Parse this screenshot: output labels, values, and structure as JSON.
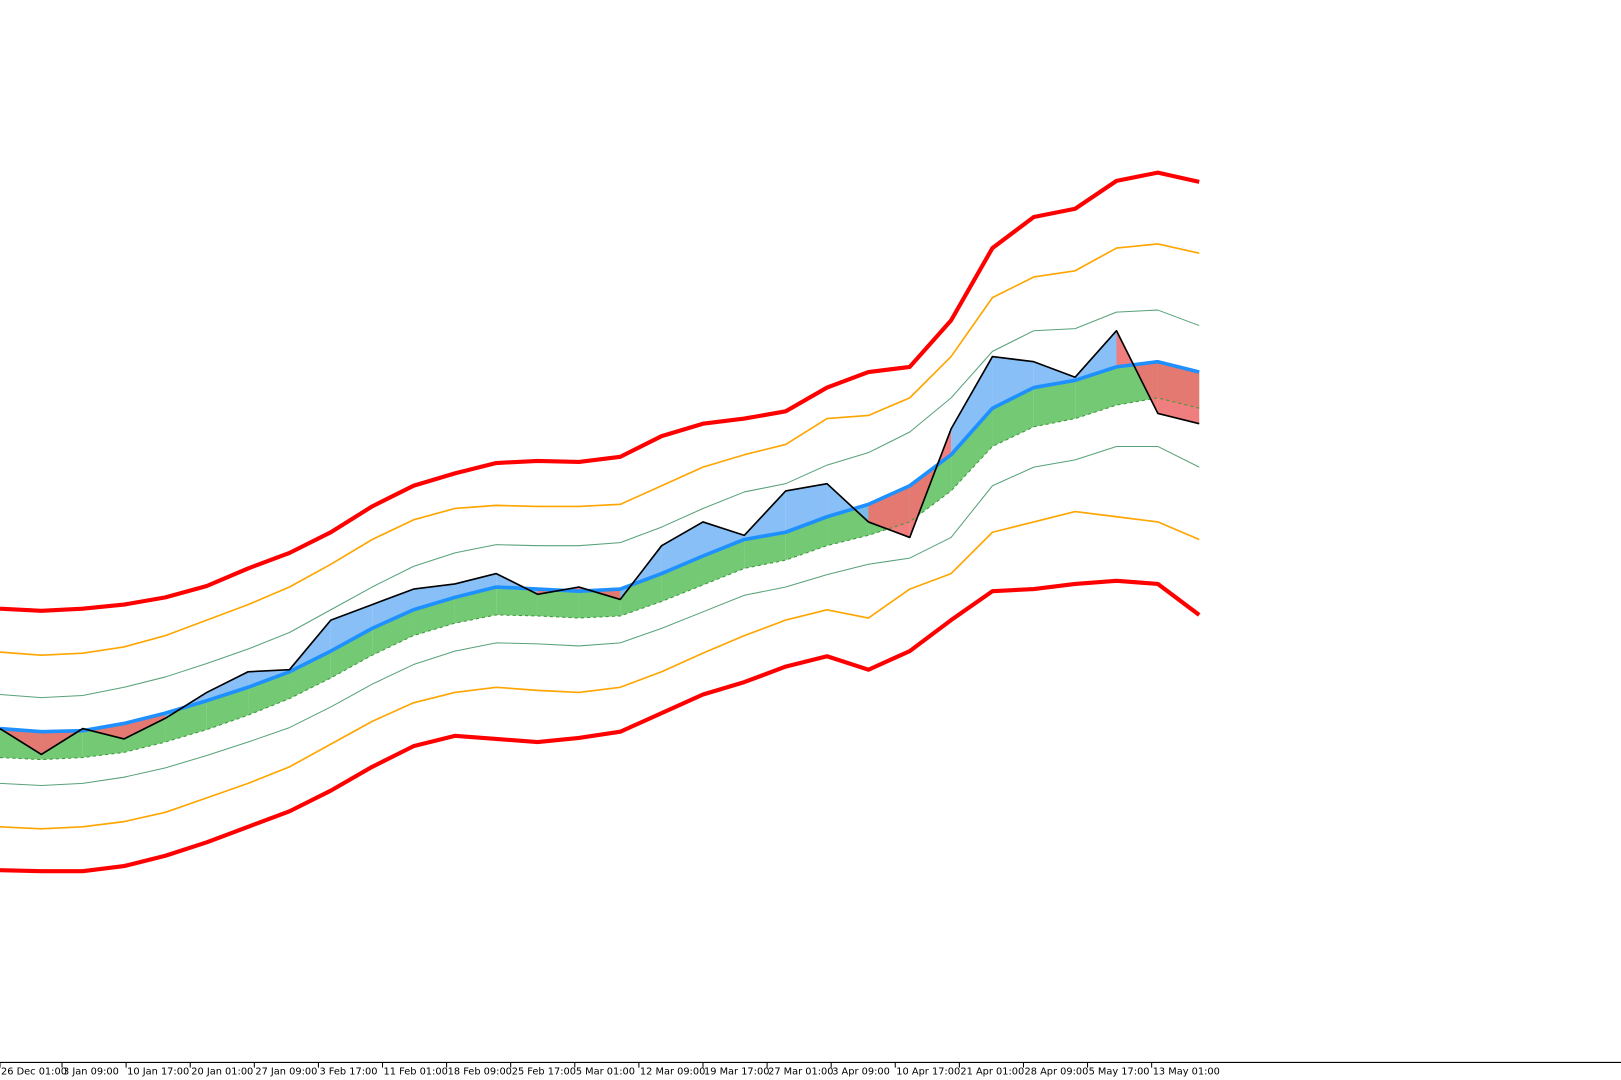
{
  "chart_data": {
    "type": "line",
    "ylim": [
      0,
      1028
    ],
    "xlim": [
      0,
      39.2
    ],
    "xticks": [
      {
        "value": 0,
        "label": "26 Dec 01:00"
      },
      {
        "value": 1.5,
        "label": "3 Jan 09:00"
      },
      {
        "value": 3.05,
        "label": "10 Jan 17:00"
      },
      {
        "value": 4.6,
        "label": "20 Jan 01:00"
      },
      {
        "value": 6.15,
        "label": "27 Jan 09:00"
      },
      {
        "value": 7.7,
        "label": "3 Feb 17:00"
      },
      {
        "value": 9.25,
        "label": "11 Feb 01:00"
      },
      {
        "value": 10.8,
        "label": "18 Feb 09:00"
      },
      {
        "value": 12.35,
        "label": "25 Feb 17:00"
      },
      {
        "value": 13.9,
        "label": "5 Mar 01:00"
      },
      {
        "value": 15.45,
        "label": "12 Mar 09:00"
      },
      {
        "value": 17,
        "label": "19 Mar 17:00"
      },
      {
        "value": 18.55,
        "label": "27 Mar 01:00"
      },
      {
        "value": 20.1,
        "label": "3 Apr 09:00"
      },
      {
        "value": 21.65,
        "label": "10 Apr 17:00"
      },
      {
        "value": 23.2,
        "label": "21 Apr 01:00"
      },
      {
        "value": 24.75,
        "label": "28 Apr 09:00"
      },
      {
        "value": 26.3,
        "label": "5 May 17:00"
      },
      {
        "value": 27.85,
        "label": "13 May 01:00"
      }
    ],
    "bands": [
      {
        "color": "#ff0000",
        "values": [
          439,
          437,
          439,
          443,
          450,
          461,
          478,
          493,
          513,
          538,
          558,
          570,
          580,
          582,
          581,
          586,
          606,
          618,
          623,
          630,
          653,
          668,
          673,
          718,
          788,
          818,
          826,
          853,
          861,
          852
        ]
      },
      {
        "color": "#ffa500",
        "values": [
          397,
          394,
          396,
          402,
          413,
          428,
          443,
          460,
          482,
          506,
          525,
          536,
          539,
          538,
          538,
          540,
          558,
          576,
          588,
          598,
          623,
          626,
          643,
          683,
          740,
          760,
          766,
          788,
          792,
          783
        ]
      },
      {
        "color": "#2e8b57",
        "values": [
          356,
          353,
          355,
          363,
          373,
          386,
          400,
          416,
          438,
          460,
          480,
          493,
          501,
          500,
          500,
          503,
          518,
          536,
          552,
          560,
          578,
          590,
          610,
          643,
          688,
          708,
          710,
          726,
          728,
          713
        ]
      },
      {
        "color": "#2e8b57",
        "values": [
          270,
          268,
          270,
          276,
          285,
          297,
          310,
          324,
          344,
          366,
          385,
          398,
          406,
          405,
          403,
          406,
          420,
          436,
          452,
          460,
          472,
          482,
          488,
          508,
          558,
          576,
          583,
          596,
          596,
          576
        ]
      },
      {
        "color": "#ffa500",
        "values": [
          228,
          226,
          228,
          233,
          242,
          256,
          270,
          286,
          308,
          330,
          348,
          358,
          363,
          360,
          358,
          363,
          378,
          396,
          413,
          428,
          438,
          430,
          458,
          473,
          513,
          523,
          533,
          528,
          523,
          506
        ]
      },
      {
        "color": "#ff0000",
        "values": [
          186,
          185,
          185,
          190,
          200,
          213,
          228,
          243,
          263,
          286,
          306,
          316,
          313,
          310,
          314,
          320,
          338,
          356,
          368,
          383,
          393,
          380,
          398,
          428,
          456,
          458,
          463,
          466,
          463,
          433
        ]
      }
    ],
    "band_lower": {
      "color": "#5cbf5c",
      "values": [
        295,
        293,
        295,
        300,
        310,
        322,
        336,
        352,
        372,
        394,
        413,
        425,
        433,
        432,
        430,
        432,
        446,
        462,
        478,
        486,
        500,
        510,
        523,
        553,
        596,
        615,
        623,
        636,
        643,
        633
      ]
    },
    "ma": {
      "color": "#1e90ff",
      "values": [
        323,
        320,
        321,
        328,
        338,
        350,
        363,
        378,
        398,
        420,
        438,
        450,
        460,
        458,
        456,
        458,
        473,
        490,
        506,
        513,
        528,
        540,
        558,
        588,
        633,
        653,
        660,
        673,
        678,
        668
      ]
    },
    "price": {
      "color": "#000000",
      "up_color": "#7ab8f5",
      "down_color": "#f07070",
      "values": [
        323,
        298,
        323,
        313,
        333,
        358,
        378,
        380,
        428,
        443,
        458,
        463,
        473,
        453,
        460,
        448,
        500,
        523,
        510,
        553,
        560,
        523,
        508,
        613,
        683,
        678,
        663,
        708,
        628,
        618
      ]
    }
  }
}
